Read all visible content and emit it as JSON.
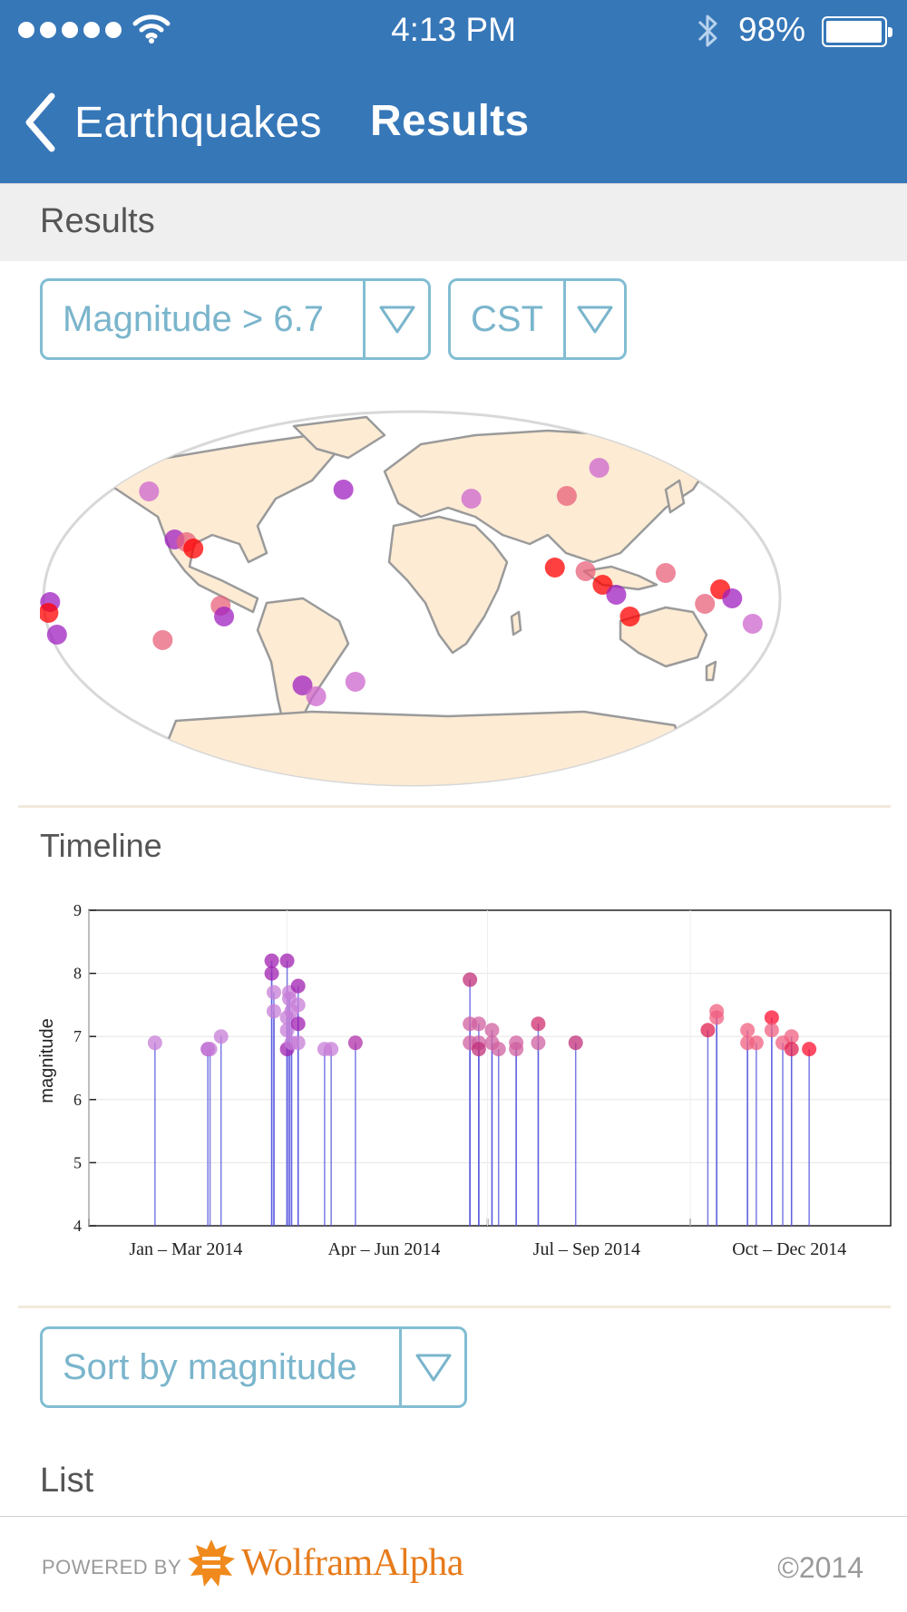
{
  "status_bar": {
    "time": "4:13 PM",
    "battery_percent": "98%",
    "battery_level": 0.98,
    "icons": [
      "signal-dots-icon",
      "wifi-icon",
      "bluetooth-icon",
      "battery-icon"
    ]
  },
  "nav": {
    "back_label": "Earthquakes",
    "title": "Results"
  },
  "results_header": "Results",
  "filters": {
    "magnitude_label": "Magnitude > 6.7",
    "timezone_label": "CST"
  },
  "map": {
    "land_color": "#fdebd4",
    "border_color": "#9a9a9a",
    "marker_colors": [
      "#ff0000",
      "#a020c0",
      "#cc66cc",
      "#e8607a"
    ]
  },
  "timeline": {
    "section_title": "Timeline"
  },
  "sort": {
    "label": "Sort by magnitude"
  },
  "list": {
    "section_title": "List"
  },
  "footer": {
    "powered_by": "POWERED BY",
    "brand": "WolframAlpha",
    "copyright": "©2014"
  },
  "chart_data": {
    "type": "scatter",
    "ylabel": "magnitude",
    "xlabel": "",
    "ylim": [
      4,
      9
    ],
    "yticks": [
      4,
      5,
      6,
      7,
      8,
      9
    ],
    "xlim": [
      "2014-01-01",
      "2014-12-31"
    ],
    "xticklabels": [
      "Jan – Mar 2014",
      "Apr – Jun 2014",
      "Jul – Sep 2014",
      "Oct – Dec 2014"
    ],
    "grid": true,
    "stems": true,
    "points": [
      {
        "x": "2014-01-31",
        "y": 6.9,
        "color": "#c77dd7"
      },
      {
        "x": "2014-02-24",
        "y": 6.8,
        "color": "#b050c8"
      },
      {
        "x": "2014-02-25",
        "y": 6.8,
        "color": "#c77dd7"
      },
      {
        "x": "2014-03-02",
        "y": 7.0,
        "color": "#c77dd7"
      },
      {
        "x": "2014-03-25",
        "y": 8.2,
        "color": "#a020b0"
      },
      {
        "x": "2014-03-25",
        "y": 8.0,
        "color": "#a020b0"
      },
      {
        "x": "2014-03-26",
        "y": 7.7,
        "color": "#c77dd7"
      },
      {
        "x": "2014-03-26",
        "y": 7.4,
        "color": "#c77dd7"
      },
      {
        "x": "2014-04-01",
        "y": 8.2,
        "color": "#a020b0"
      },
      {
        "x": "2014-04-01",
        "y": 6.8,
        "color": "#a020b0"
      },
      {
        "x": "2014-04-01",
        "y": 7.3,
        "color": "#c77dd7"
      },
      {
        "x": "2014-04-01",
        "y": 7.1,
        "color": "#c77dd7"
      },
      {
        "x": "2014-04-02",
        "y": 7.7,
        "color": "#c77dd7"
      },
      {
        "x": "2014-04-02",
        "y": 7.6,
        "color": "#c77dd7"
      },
      {
        "x": "2014-04-03",
        "y": 7.4,
        "color": "#c77dd7"
      },
      {
        "x": "2014-04-03",
        "y": 6.9,
        "color": "#c77dd7"
      },
      {
        "x": "2014-04-06",
        "y": 7.8,
        "color": "#a020b0"
      },
      {
        "x": "2014-04-06",
        "y": 7.5,
        "color": "#c77dd7"
      },
      {
        "x": "2014-04-06",
        "y": 7.2,
        "color": "#a020b0"
      },
      {
        "x": "2014-04-06",
        "y": 6.9,
        "color": "#c77dd7"
      },
      {
        "x": "2014-04-18",
        "y": 6.8,
        "color": "#c77dd7"
      },
      {
        "x": "2014-04-21",
        "y": 6.8,
        "color": "#c77dd7"
      },
      {
        "x": "2014-05-02",
        "y": 6.9,
        "color": "#b030a8"
      },
      {
        "x": "2014-06-23",
        "y": 7.9,
        "color": "#c0307a"
      },
      {
        "x": "2014-06-23",
        "y": 7.2,
        "color": "#d060a0"
      },
      {
        "x": "2014-06-23",
        "y": 6.9,
        "color": "#d060a0"
      },
      {
        "x": "2014-06-27",
        "y": 7.2,
        "color": "#d060a0"
      },
      {
        "x": "2014-06-27",
        "y": 6.9,
        "color": "#d060a0"
      },
      {
        "x": "2014-06-27",
        "y": 6.8,
        "color": "#c0307a"
      },
      {
        "x": "2014-07-03",
        "y": 7.1,
        "color": "#d060a0"
      },
      {
        "x": "2014-07-03",
        "y": 6.9,
        "color": "#d060a0"
      },
      {
        "x": "2014-07-06",
        "y": 6.8,
        "color": "#d060a0"
      },
      {
        "x": "2014-07-14",
        "y": 6.9,
        "color": "#d060a0"
      },
      {
        "x": "2014-07-14",
        "y": 6.8,
        "color": "#d060a0"
      },
      {
        "x": "2014-07-24",
        "y": 7.2,
        "color": "#d03070"
      },
      {
        "x": "2014-07-24",
        "y": 6.9,
        "color": "#d060a0"
      },
      {
        "x": "2014-08-10",
        "y": 6.9,
        "color": "#c0307a"
      },
      {
        "x": "2014-10-09",
        "y": 7.1,
        "color": "#e02050"
      },
      {
        "x": "2014-10-13",
        "y": 7.4,
        "color": "#f06080"
      },
      {
        "x": "2014-10-13",
        "y": 7.3,
        "color": "#f06080"
      },
      {
        "x": "2014-10-27",
        "y": 7.1,
        "color": "#f06080"
      },
      {
        "x": "2014-10-27",
        "y": 6.9,
        "color": "#f06080"
      },
      {
        "x": "2014-10-31",
        "y": 6.9,
        "color": "#f06080"
      },
      {
        "x": "2014-11-07",
        "y": 7.3,
        "color": "#ff1030"
      },
      {
        "x": "2014-11-07",
        "y": 7.1,
        "color": "#f06080"
      },
      {
        "x": "2014-11-12",
        "y": 6.9,
        "color": "#f06080"
      },
      {
        "x": "2014-11-16",
        "y": 7.0,
        "color": "#f06080"
      },
      {
        "x": "2014-11-16",
        "y": 6.8,
        "color": "#e02050"
      },
      {
        "x": "2014-11-24",
        "y": 6.8,
        "color": "#ff1030"
      }
    ]
  }
}
